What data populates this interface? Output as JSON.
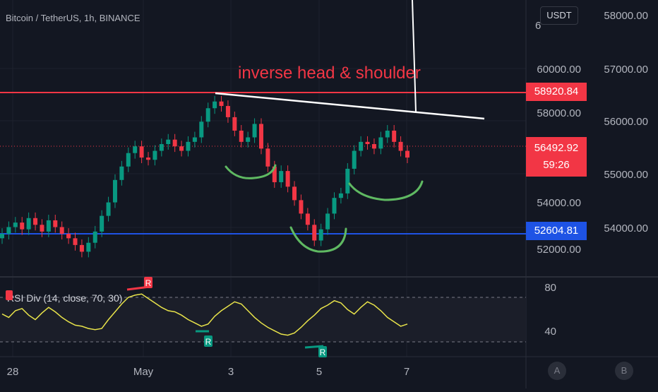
{
  "header": {
    "title": "Bitcoin / TetherUS, 1h, BINANCE",
    "currency": "USDT"
  },
  "annotation": {
    "text": "inverse head & shoulder"
  },
  "chart_data": {
    "type": "candlestick",
    "price_axis_right": [
      "58000.00",
      "57000.00",
      "56000.00",
      "55000.00",
      "54000.00"
    ],
    "price_axis_inner": [
      "60000.00",
      "58000.00",
      "54000.00",
      "52000.00"
    ],
    "hidden_partial": "6",
    "x_ticks": [
      "28",
      "May",
      "3",
      "5",
      "7"
    ],
    "resistance": {
      "value": "58920.84",
      "color": "#f23645"
    },
    "support": {
      "value": "52604.81",
      "color": "#1e53e5"
    },
    "last_price": {
      "value": "56492.92",
      "countdown": "59:26",
      "color": "#f23645"
    },
    "close_series": [
      52.6,
      52.9,
      53.1,
      52.8,
      53.3,
      53.0,
      52.7,
      53.2,
      52.9,
      52.6,
      52.4,
      52.1,
      51.8,
      52.2,
      52.7,
      53.4,
      54.0,
      55.0,
      55.6,
      56.2,
      56.5,
      56.0,
      55.9,
      56.3,
      56.6,
      56.8,
      56.5,
      56.3,
      56.7,
      56.9,
      57.6,
      58.2,
      58.5,
      58.3,
      57.8,
      57.2,
      56.7,
      56.9,
      57.5,
      56.4,
      55.6,
      54.9,
      55.4,
      54.7,
      54.1,
      53.5,
      53.0,
      52.3,
      52.8,
      53.5,
      54.2,
      54.4,
      55.5,
      56.3,
      56.7,
      56.6,
      56.4,
      56.9,
      57.2,
      56.7,
      56.3,
      56.0
    ],
    "rsi": {
      "label": "RSI Div (14, close, 70, 30)",
      "levels": [
        "80",
        "40"
      ],
      "values": [
        55,
        52,
        58,
        60,
        54,
        50,
        56,
        61,
        57,
        52,
        48,
        45,
        44,
        42,
        41,
        42,
        50,
        57,
        64,
        70,
        72,
        73,
        69,
        65,
        61,
        58,
        57,
        54,
        50,
        47,
        44,
        46,
        53,
        58,
        62,
        66,
        64,
        58,
        52,
        47,
        43,
        40,
        37,
        36,
        38,
        43,
        49,
        54,
        60,
        63,
        67,
        65,
        59,
        55,
        61,
        66,
        63,
        58,
        52,
        48,
        44,
        46
      ],
      "markers": [
        {
          "label": "R",
          "color": "#f23645"
        },
        {
          "label": "R",
          "color": "#089981"
        },
        {
          "label": "R",
          "color": "#089981"
        }
      ]
    },
    "tool_buttons": [
      "A",
      "B"
    ]
  }
}
